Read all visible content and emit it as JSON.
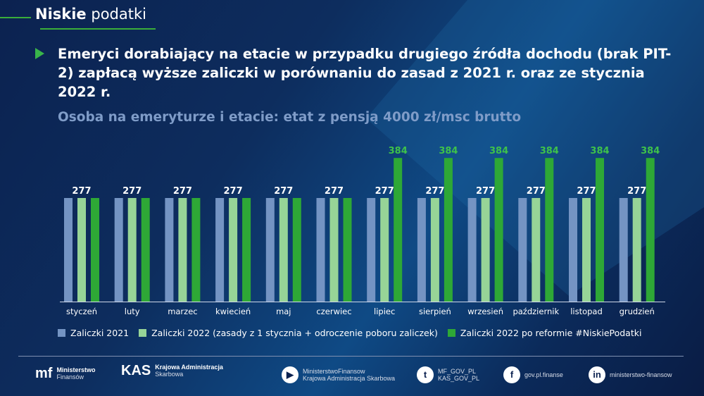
{
  "brand": {
    "bold": "Niskie",
    "light": "podatki"
  },
  "title": "Emeryci dorabiający na etacie w przypadku drugiego źródła dochodu (brak PIT-2) zapłacą wyższe zaliczki w porównaniu do zasad z 2021 r. oraz ze stycznia 2022 r.",
  "subtitle": "Osoba na emeryturze i etacie: etat z pensją 4000 zł/msc brutto",
  "chart_data": {
    "type": "bar",
    "title": "",
    "xlabel": "",
    "ylabel": "",
    "ylim": [
      0,
      400
    ],
    "grid": false,
    "legend_position": "bottom",
    "categories": [
      "styczeń",
      "luty",
      "marzec",
      "kwiecień",
      "maj",
      "czerwiec",
      "lipiec",
      "sierpień",
      "wrzesień",
      "październik",
      "listopad",
      "grudzień"
    ],
    "series": [
      {
        "name": "Zaliczki 2021",
        "color": "#7494c3",
        "values": [
          277,
          277,
          277,
          277,
          277,
          277,
          277,
          277,
          277,
          277,
          277,
          277
        ]
      },
      {
        "name": "Zaliczki 2022 (zasady z 1 stycznia + odroczenie poboru zaliczek)",
        "color": "#97d497",
        "values": [
          277,
          277,
          277,
          277,
          277,
          277,
          277,
          277,
          277,
          277,
          277,
          277
        ]
      },
      {
        "name": "Zaliczki 2022 po reformie #NiskiePodatki",
        "color": "#2ea836",
        "values": [
          277,
          277,
          277,
          277,
          277,
          277,
          384,
          384,
          384,
          384,
          384,
          384
        ]
      }
    ],
    "label_colors": {
      "default": "#ffffff",
      "highlight": "#3ec24a"
    }
  },
  "footer": {
    "mf": [
      "Ministerstwo",
      "Finansów"
    ],
    "kas": [
      "Krajowa Administracja",
      "Skarbowa"
    ],
    "youtube": [
      "MinisterstwoFinansow",
      "Krajowa Administracja Skarbowa"
    ],
    "twitter": [
      "MF_GOV_PL",
      "KAS_GOV_PL"
    ],
    "facebook": "gov.pl.finanse",
    "linkedin": "ministerstwo-finansow"
  }
}
